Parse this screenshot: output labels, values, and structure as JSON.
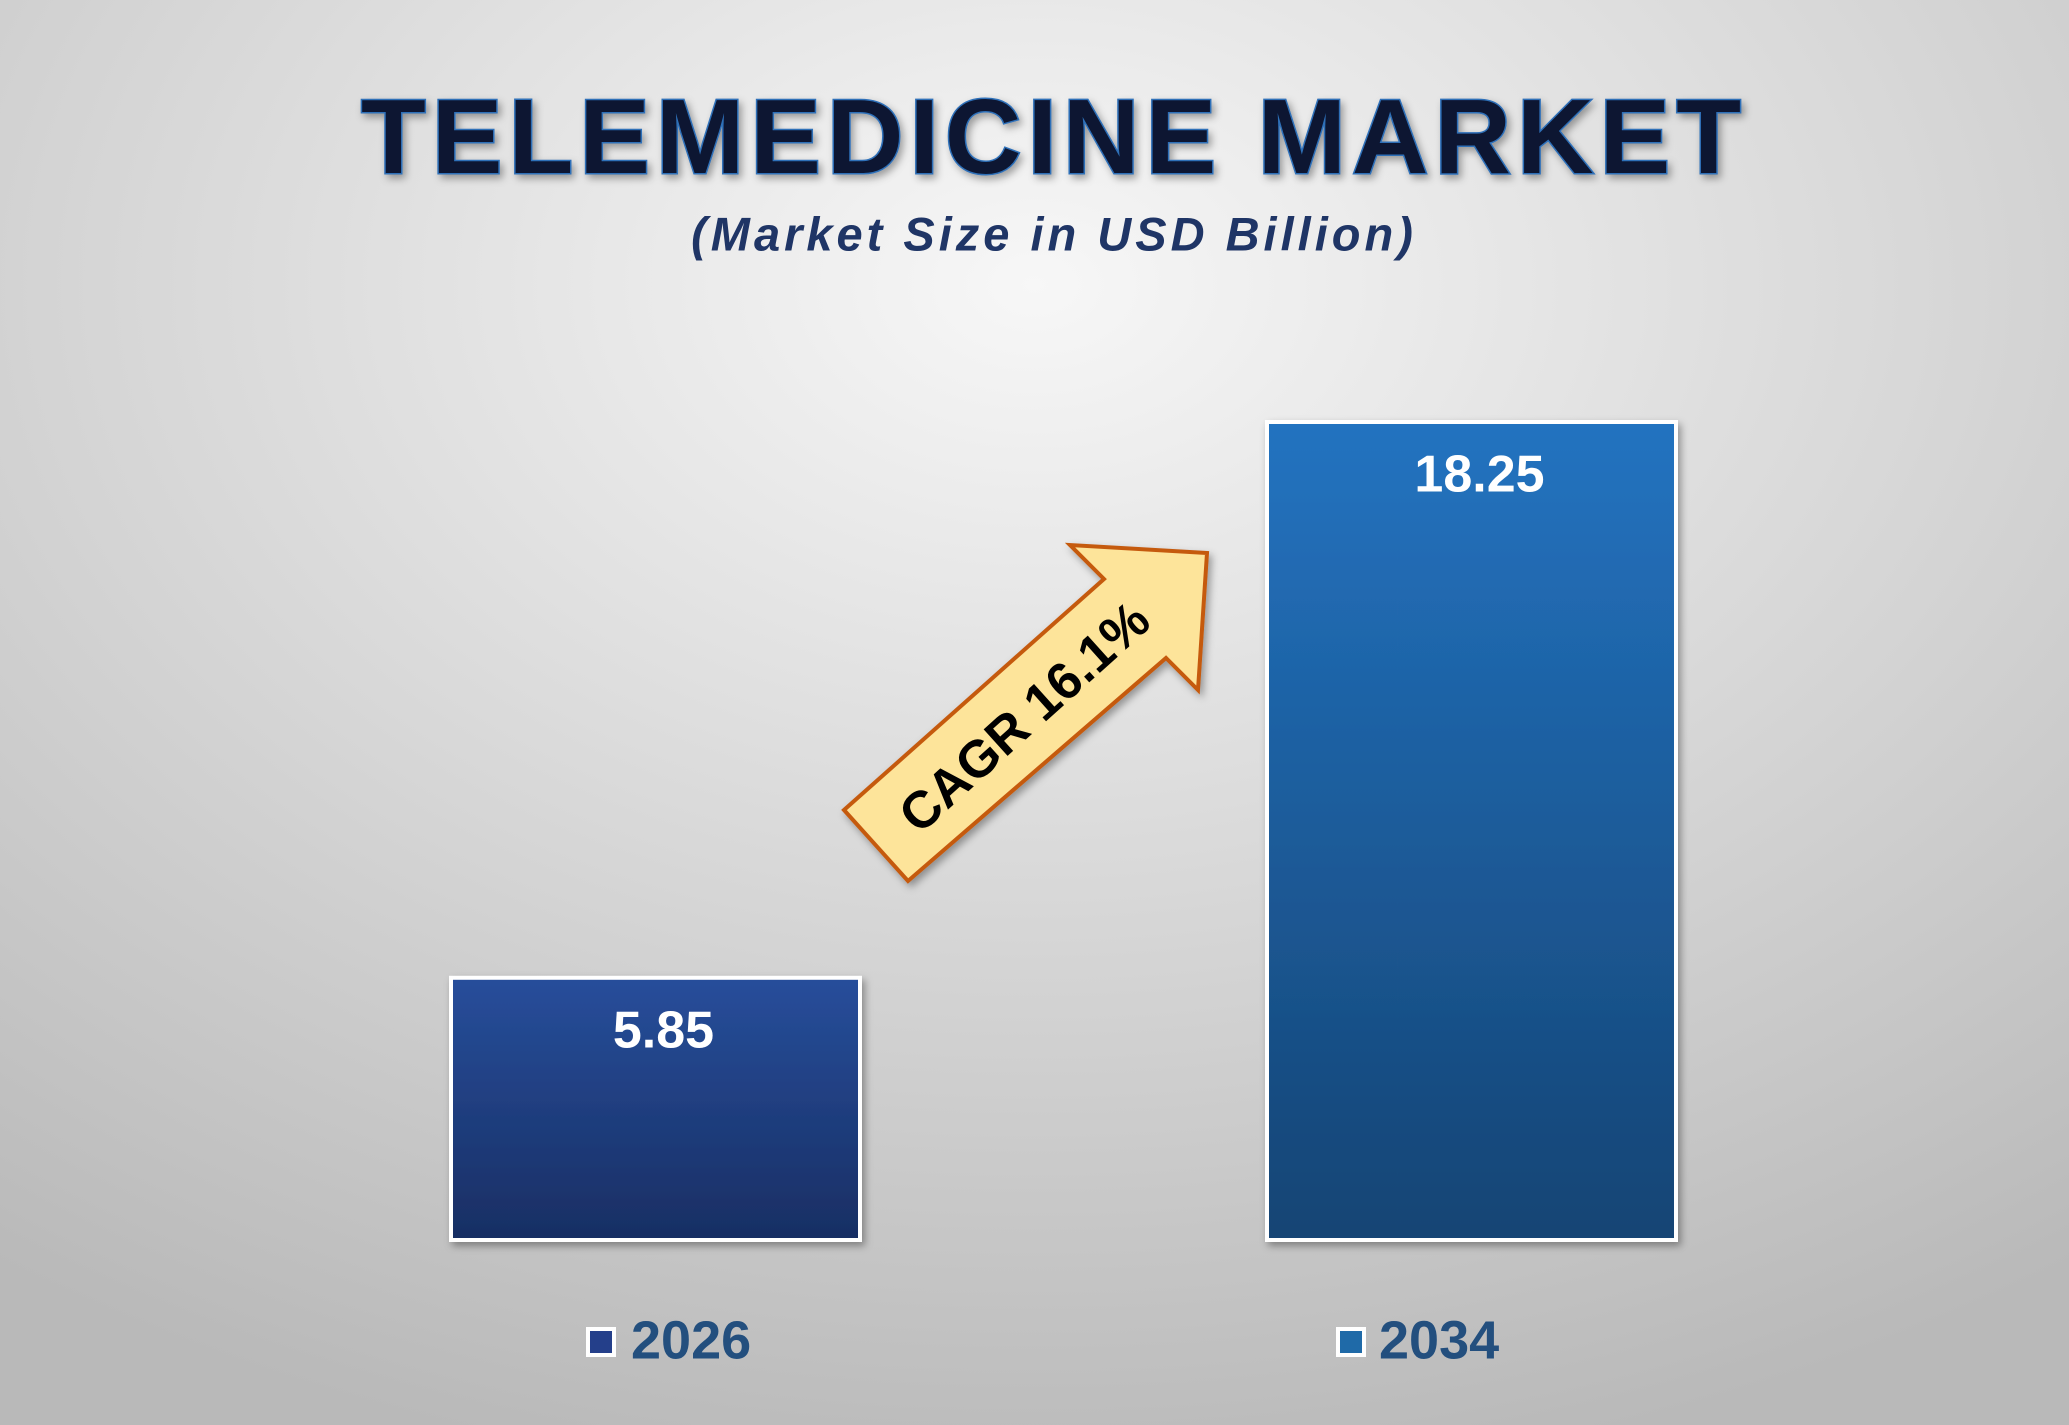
{
  "chart_data": {
    "type": "bar",
    "title": "TELEMEDICINE MARKET",
    "subtitle": "(Market Size in USD Billion)",
    "categories": [
      "2026",
      "2034"
    ],
    "values": [
      5.85,
      18.25
    ],
    "colors": [
      "#243f8a",
      "#1f6aa8"
    ],
    "annotation": "CAGR 16.1%",
    "legend": "bottom"
  }
}
